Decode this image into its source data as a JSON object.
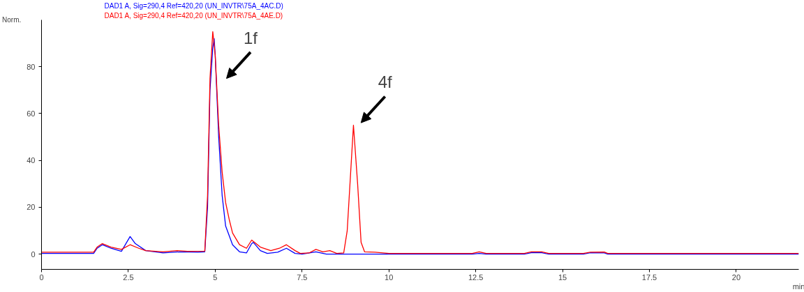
{
  "chart_data": {
    "type": "line",
    "ylabel": "Norm.",
    "xlabel": "min",
    "xlim": [
      0,
      21.8
    ],
    "ylim": [
      -6.5,
      100
    ],
    "xticks": [
      0,
      {
        "value": 2.5,
        "label": "2.5"
      },
      5,
      {
        "value": 7.5,
        "label": "7.5"
      },
      10,
      {
        "value": 12.5,
        "label": "12.5"
      },
      15,
      {
        "value": 17.5,
        "label": "17.5"
      },
      20
    ],
    "yticks": [
      0,
      20,
      40,
      60,
      80
    ],
    "grid": false,
    "marker": "none",
    "line_style": "solid",
    "annotations": [
      {
        "text": "1f",
        "x": 4.93,
        "y": 95
      },
      {
        "text": "4f",
        "x": 8.98,
        "y": 55
      }
    ],
    "series": [
      {
        "name": "DAD1 A, Sig=290,4 Ref=420,20 (UN_INVTR\\75A_4AC.D)",
        "color": "#0000ff",
        "x": [
          0,
          1.5,
          1.6,
          1.75,
          2.0,
          2.3,
          2.45,
          2.55,
          2.7,
          3.0,
          3.5,
          4.0,
          4.5,
          4.7,
          4.78,
          4.85,
          4.93,
          4.97,
          5.0,
          5.1,
          5.2,
          5.3,
          5.5,
          5.7,
          5.9,
          6.05,
          6.1,
          6.3,
          6.5,
          6.8,
          7.05,
          7.3,
          7.5,
          7.9,
          8.2,
          9,
          10,
          12.4,
          12.6,
          12.8,
          13.9,
          14.1,
          14.4,
          14.6,
          15.6,
          15.8,
          16.2,
          16.3,
          21.8
        ],
        "values": [
          0.3,
          0.3,
          2.5,
          4,
          2.5,
          1.2,
          5,
          7.5,
          4.5,
          1.5,
          0.5,
          1,
          0.8,
          1,
          20,
          70,
          88,
          92,
          85,
          50,
          25,
          12,
          4,
          1,
          0.5,
          4.5,
          5,
          1.5,
          0.3,
          0.8,
          2.5,
          0.3,
          0,
          1,
          0,
          0,
          0,
          0,
          0.3,
          0,
          0,
          0.6,
          0.6,
          0,
          0,
          0.6,
          0.5,
          0,
          0
        ]
      },
      {
        "name": "DAD1 A, Sig=290,4 Ref=420,20 (UN_INVTR\\75A_4AE.D)",
        "color": "#ff0000",
        "x": [
          0,
          1.5,
          1.6,
          1.75,
          2.0,
          2.3,
          2.55,
          2.8,
          3.0,
          3.5,
          3.9,
          4.2,
          4.7,
          4.78,
          4.85,
          4.93,
          5.0,
          5.1,
          5.2,
          5.3,
          5.4,
          5.5,
          5.7,
          5.9,
          6.05,
          6.3,
          6.6,
          6.85,
          7.05,
          7.3,
          7.45,
          7.7,
          7.9,
          8.1,
          8.3,
          8.5,
          8.7,
          8.8,
          8.9,
          8.98,
          9.1,
          9.2,
          9.3,
          9.6,
          10,
          12.4,
          12.6,
          12.8,
          13.9,
          14.1,
          14.4,
          14.6,
          15.6,
          15.8,
          16.2,
          16.3,
          21.8
        ],
        "values": [
          0.8,
          0.8,
          3,
          4.5,
          3,
          2,
          4,
          2.5,
          1.5,
          1,
          1.5,
          1.2,
          1.3,
          25,
          75,
          95,
          85,
          55,
          35,
          22,
          15,
          9,
          4,
          2.5,
          6,
          3,
          1.5,
          2.5,
          4,
          1.5,
          0.3,
          0.5,
          2,
          1,
          1.5,
          0.3,
          0.5,
          10,
          35,
          55,
          30,
          5,
          1,
          0.8,
          0.3,
          0.3,
          1,
          0.3,
          0.3,
          1,
          1,
          0.3,
          0.3,
          0.8,
          0.9,
          0.3,
          0.3
        ]
      }
    ]
  }
}
